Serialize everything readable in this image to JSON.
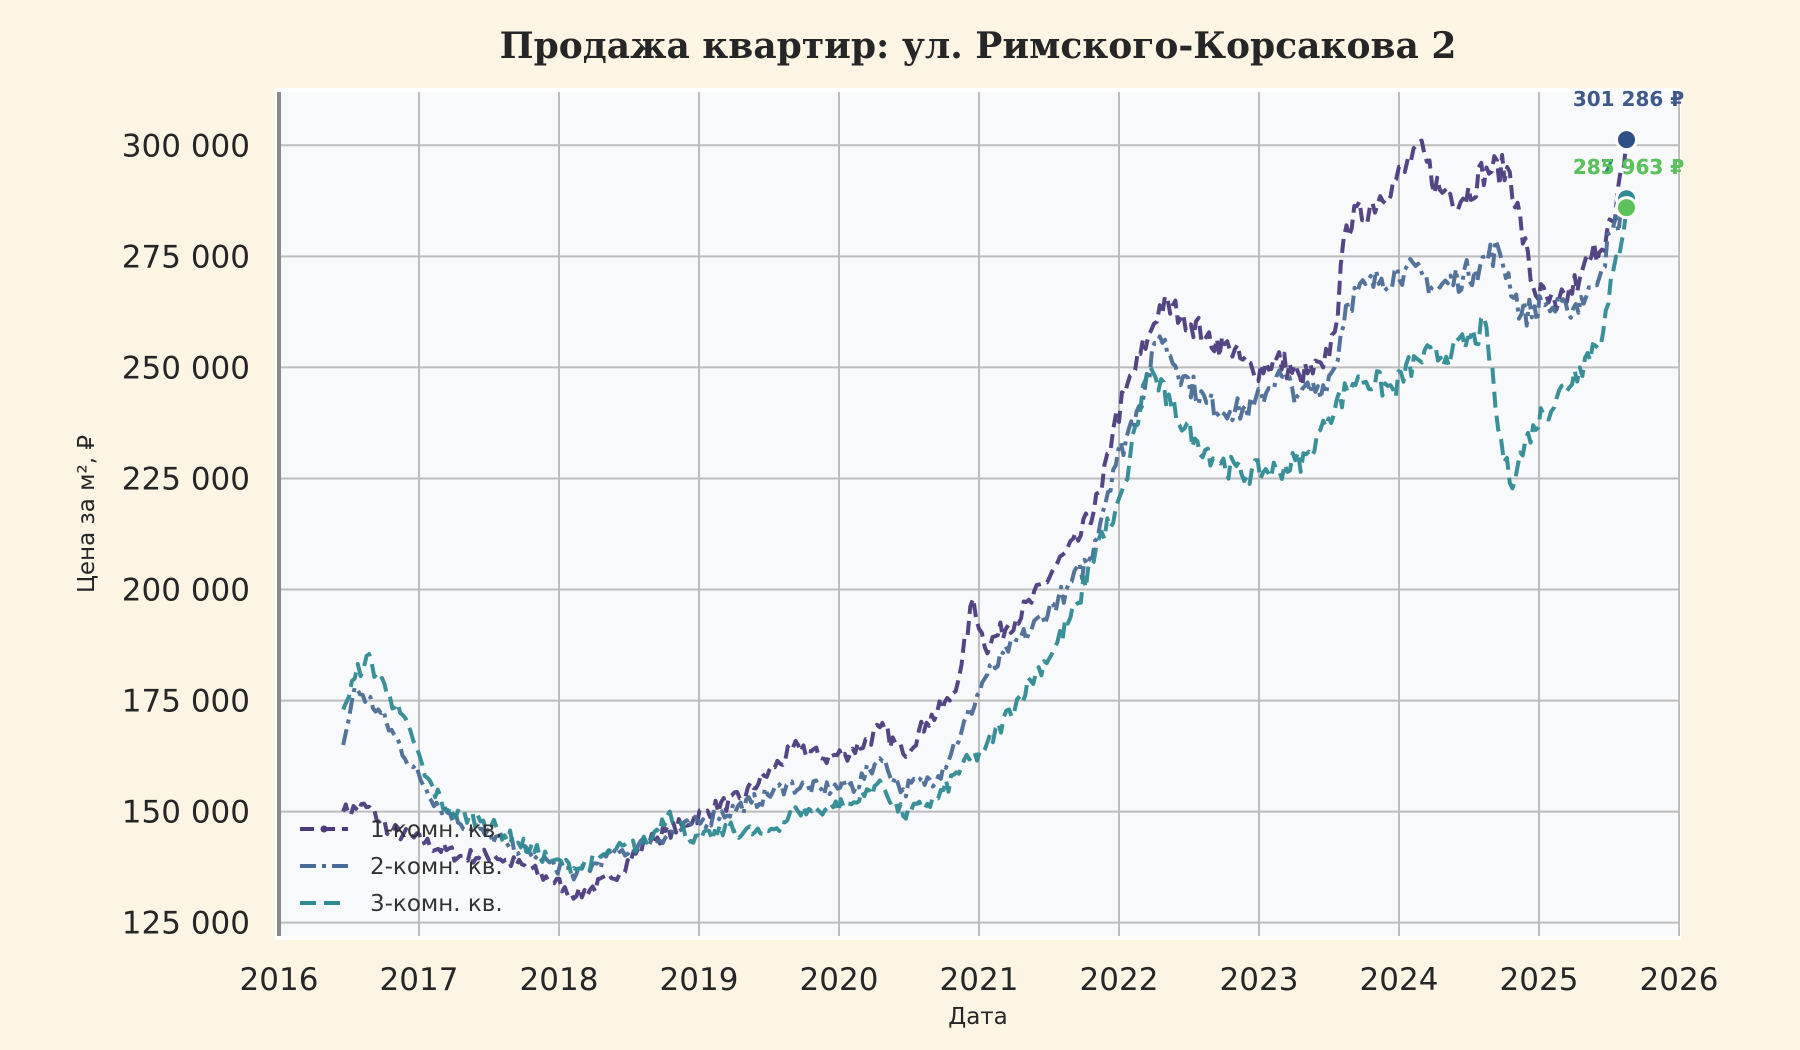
{
  "chart_data": {
    "type": "line",
    "title": "Продажа квартир: ул. Римского-Корсакова 2",
    "xlabel": "Дата",
    "ylabel": "Цена за м², ₽",
    "xlim": [
      "2016-01-01",
      "2026-01-01"
    ],
    "ylim": [
      122000,
      312000
    ],
    "x_ticks": [
      "2016",
      "2017",
      "2018",
      "2019",
      "2020",
      "2021",
      "2022",
      "2023",
      "2024",
      "2025",
      "2026"
    ],
    "y_ticks": [
      125000,
      150000,
      175000,
      200000,
      225000,
      250000,
      275000,
      300000
    ],
    "y_tick_labels": [
      "125 000",
      "150 000",
      "175 000",
      "200 000",
      "225 000",
      "250 000",
      "275 000",
      "300 000"
    ],
    "grid": true,
    "legend_position": "lower-left",
    "series": [
      {
        "name": "1-комн. кв.",
        "color": "#4b3b7e",
        "style": "dashed-with-markers",
        "points": [
          [
            "2016-06",
            150000
          ],
          [
            "2016-08",
            151000
          ],
          [
            "2016-10",
            146000
          ],
          [
            "2017-01",
            143000
          ],
          [
            "2017-04",
            140000
          ],
          [
            "2017-07",
            140000
          ],
          [
            "2017-10",
            137000
          ],
          [
            "2018-01",
            133000
          ],
          [
            "2018-02",
            131000
          ],
          [
            "2018-05",
            135000
          ],
          [
            "2018-08",
            143000
          ],
          [
            "2018-11",
            147000
          ],
          [
            "2019-01",
            150000
          ],
          [
            "2019-04",
            153000
          ],
          [
            "2019-07",
            160000
          ],
          [
            "2019-09",
            165000
          ],
          [
            "2019-11",
            162000
          ],
          [
            "2020-01",
            163000
          ],
          [
            "2020-03",
            166000
          ],
          [
            "2020-04",
            169000
          ],
          [
            "2020-06",
            163000
          ],
          [
            "2020-08",
            170000
          ],
          [
            "2020-10",
            175000
          ],
          [
            "2020-11",
            183000
          ],
          [
            "2020-12",
            198000
          ],
          [
            "2021-01",
            187000
          ],
          [
            "2021-03",
            192000
          ],
          [
            "2021-05",
            197000
          ],
          [
            "2021-07",
            205000
          ],
          [
            "2021-09",
            211000
          ],
          [
            "2021-11",
            222000
          ],
          [
            "2021-12",
            236000
          ],
          [
            "2022-01",
            244000
          ],
          [
            "2022-03",
            257000
          ],
          [
            "2022-04",
            264000
          ],
          [
            "2022-06",
            262000
          ],
          [
            "2022-08",
            257000
          ],
          [
            "2022-10",
            254000
          ],
          [
            "2022-12",
            249000
          ],
          [
            "2023-02",
            252000
          ],
          [
            "2023-04",
            248000
          ],
          [
            "2023-06",
            250000
          ],
          [
            "2023-07",
            258000
          ],
          [
            "2023-08",
            282000
          ],
          [
            "2023-10",
            286000
          ],
          [
            "2023-12",
            292000
          ],
          [
            "2024-01",
            294000
          ],
          [
            "2024-02",
            300000
          ],
          [
            "2024-04",
            290000
          ],
          [
            "2024-06",
            288000
          ],
          [
            "2024-08",
            295000
          ],
          [
            "2024-10",
            294000
          ],
          [
            "2024-12",
            268000
          ],
          [
            "2025-02",
            263000
          ],
          [
            "2025-04",
            270000
          ],
          [
            "2025-05",
            275000
          ],
          [
            "2025-07",
            283000
          ],
          [
            "2025-08",
            301286
          ]
        ]
      },
      {
        "name": "2-комн. кв.",
        "color": "#4a6b96",
        "style": "dash-dot",
        "points": [
          [
            "2016-06",
            165000
          ],
          [
            "2016-07",
            178000
          ],
          [
            "2016-09",
            173000
          ],
          [
            "2016-12",
            160000
          ],
          [
            "2017-02",
            152000
          ],
          [
            "2017-05",
            146000
          ],
          [
            "2017-08",
            143000
          ],
          [
            "2017-11",
            139000
          ],
          [
            "2018-02",
            136000
          ],
          [
            "2018-05",
            140000
          ],
          [
            "2018-08",
            143000
          ],
          [
            "2018-11",
            146000
          ],
          [
            "2019-02",
            149000
          ],
          [
            "2019-05",
            152000
          ],
          [
            "2019-08",
            156000
          ],
          [
            "2019-11",
            155000
          ],
          [
            "2020-02",
            156000
          ],
          [
            "2020-04",
            162000
          ],
          [
            "2020-06",
            155000
          ],
          [
            "2020-09",
            158000
          ],
          [
            "2020-11",
            168000
          ],
          [
            "2021-01",
            180000
          ],
          [
            "2021-03",
            186000
          ],
          [
            "2021-05",
            191000
          ],
          [
            "2021-08",
            200000
          ],
          [
            "2021-10",
            207000
          ],
          [
            "2021-12",
            227000
          ],
          [
            "2022-02",
            240000
          ],
          [
            "2022-04",
            257000
          ],
          [
            "2022-06",
            248000
          ],
          [
            "2022-08",
            242000
          ],
          [
            "2022-10",
            240000
          ],
          [
            "2022-12",
            241000
          ],
          [
            "2023-02",
            248000
          ],
          [
            "2023-04",
            244000
          ],
          [
            "2023-06",
            246000
          ],
          [
            "2023-07",
            250000
          ],
          [
            "2023-08",
            265000
          ],
          [
            "2023-11",
            270000
          ],
          [
            "2024-01",
            272000
          ],
          [
            "2024-04",
            268000
          ],
          [
            "2024-07",
            272000
          ],
          [
            "2024-09",
            277000
          ],
          [
            "2024-11",
            262000
          ],
          [
            "2025-01",
            264000
          ],
          [
            "2025-03",
            262000
          ],
          [
            "2025-05",
            268000
          ],
          [
            "2025-08",
            287963
          ]
        ]
      },
      {
        "name": "3-комн. кв.",
        "color": "#2e8a93",
        "style": "dashed",
        "points": [
          [
            "2016-06",
            173000
          ],
          [
            "2016-07",
            180000
          ],
          [
            "2016-08",
            185000
          ],
          [
            "2016-10",
            176000
          ],
          [
            "2016-12",
            166000
          ],
          [
            "2017-01",
            158000
          ],
          [
            "2017-03",
            150000
          ],
          [
            "2017-06",
            148000
          ],
          [
            "2017-09",
            143000
          ],
          [
            "2017-12",
            139000
          ],
          [
            "2018-02",
            137000
          ],
          [
            "2018-05",
            141000
          ],
          [
            "2018-08",
            143000
          ],
          [
            "2018-10",
            150000
          ],
          [
            "2018-12",
            143000
          ],
          [
            "2019-03",
            146000
          ],
          [
            "2019-06",
            145000
          ],
          [
            "2019-09",
            150000
          ],
          [
            "2019-12",
            151000
          ],
          [
            "2020-02",
            152000
          ],
          [
            "2020-04",
            157000
          ],
          [
            "2020-06",
            149000
          ],
          [
            "2020-09",
            153000
          ],
          [
            "2020-11",
            160000
          ],
          [
            "2021-01",
            164000
          ],
          [
            "2021-04",
            176000
          ],
          [
            "2021-07",
            187000
          ],
          [
            "2021-09",
            197000
          ],
          [
            "2021-11",
            213000
          ],
          [
            "2021-12",
            215000
          ],
          [
            "2022-01",
            224000
          ],
          [
            "2022-03",
            250000
          ],
          [
            "2022-05",
            241000
          ],
          [
            "2022-07",
            234000
          ],
          [
            "2022-09",
            229000
          ],
          [
            "2022-11",
            226000
          ],
          [
            "2023-02",
            227000
          ],
          [
            "2023-05",
            230000
          ],
          [
            "2023-06",
            238000
          ],
          [
            "2023-09",
            248000
          ],
          [
            "2023-12",
            245000
          ],
          [
            "2024-02",
            252000
          ],
          [
            "2024-05",
            253000
          ],
          [
            "2024-08",
            259000
          ],
          [
            "2024-09",
            236000
          ],
          [
            "2024-10",
            224000
          ],
          [
            "2024-12",
            237000
          ],
          [
            "2025-02",
            243000
          ],
          [
            "2025-04",
            250000
          ],
          [
            "2025-06",
            258000
          ],
          [
            "2025-08",
            285963
          ]
        ]
      }
    ],
    "end_labels": [
      {
        "text": "301 286 ₽",
        "date": "2025-08",
        "value": 301286,
        "color": "#3f5a8a"
      },
      {
        "text": "287 963 ₽",
        "date": "2025-08",
        "value": 287963,
        "color": "#2e8a7e"
      },
      {
        "text": "285 963 ₽",
        "date": "2025-08",
        "value": 285963,
        "color": "#5cc25a"
      }
    ],
    "end_marker_colors": [
      "#2f4f87",
      "#2e8a93",
      "#5cc25a"
    ]
  }
}
